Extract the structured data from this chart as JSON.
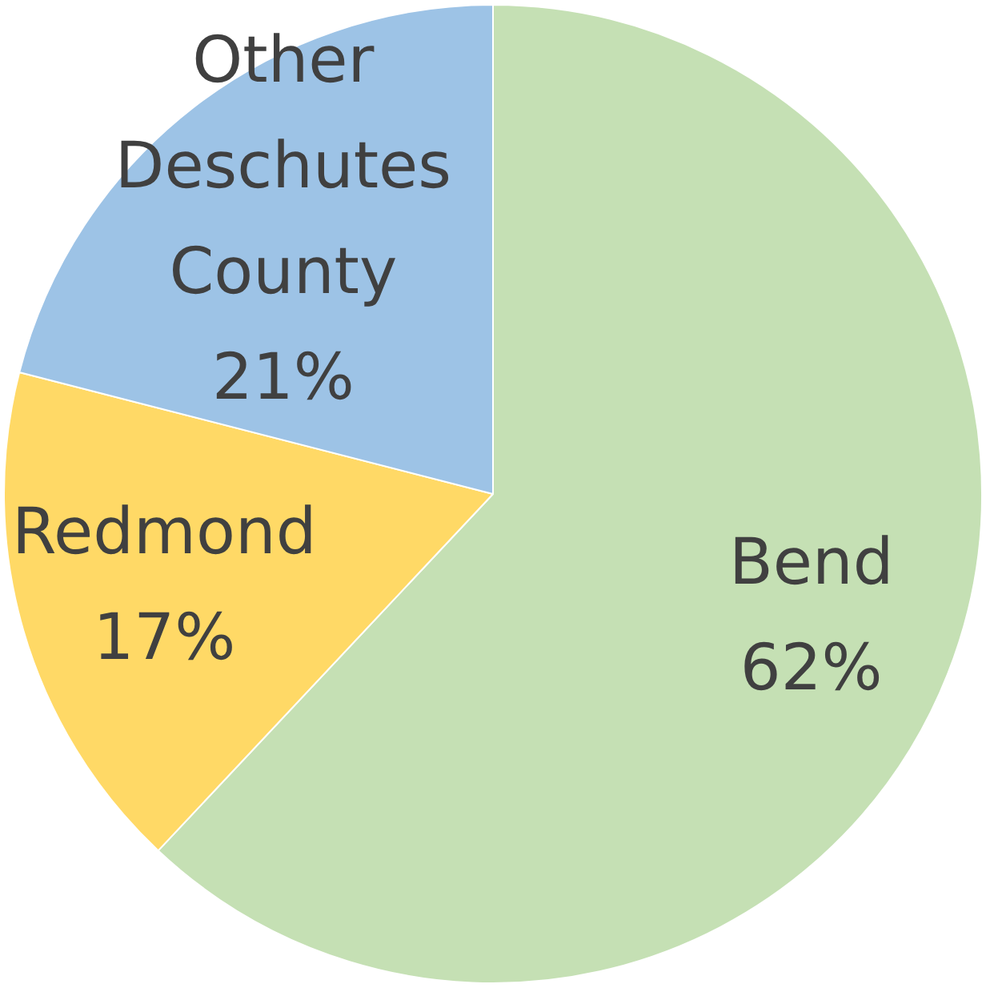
{
  "chart_data": {
    "type": "pie",
    "categories": [
      "Bend",
      "Redmond",
      "Other Deschutes County"
    ],
    "values": [
      62,
      17,
      21
    ],
    "colors": [
      "#c5e0b4",
      "#ffd966",
      "#9dc3e6"
    ],
    "value_labels": [
      "62%",
      "17%",
      "21%"
    ],
    "legend": false
  }
}
